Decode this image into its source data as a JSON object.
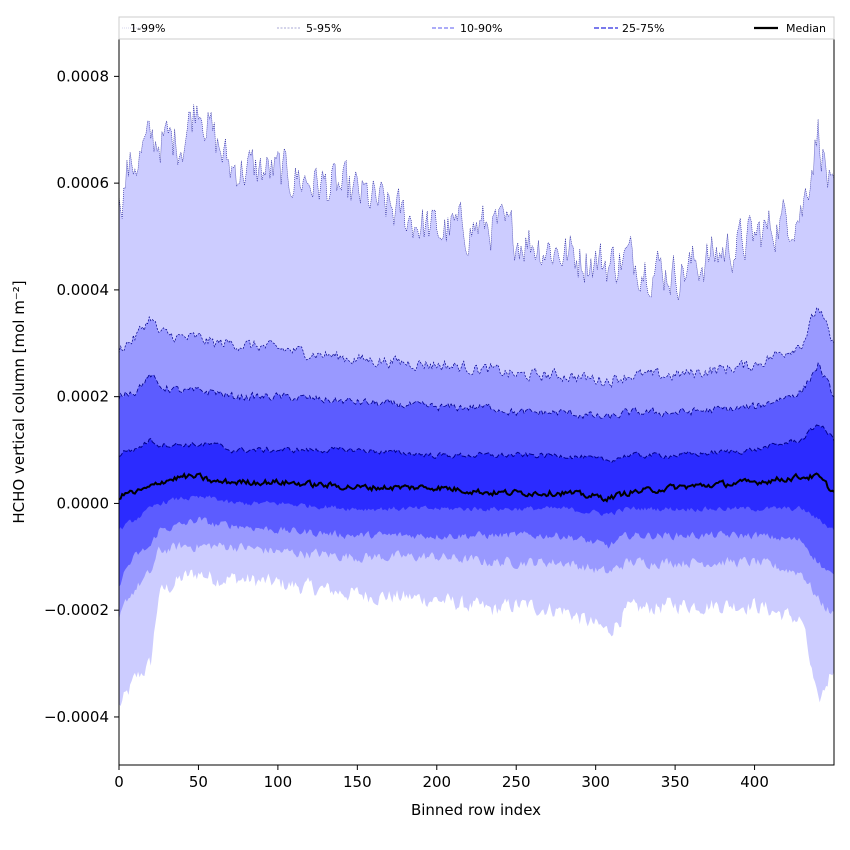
{
  "chart_data": {
    "type": "area",
    "xlabel": "Binned row index",
    "ylabel": "HCHO vertical column [mol m⁻²]",
    "xlim": [
      0,
      450
    ],
    "ylim": [
      -0.00049,
      0.00087
    ],
    "xticks": [
      0,
      50,
      100,
      150,
      200,
      250,
      300,
      350,
      400
    ],
    "xtick_labels": [
      "0",
      "50",
      "100",
      "150",
      "200",
      "250",
      "300",
      "350",
      "400"
    ],
    "yticks": [
      -0.0004,
      -0.0002,
      0.0,
      0.0002,
      0.0004,
      0.0006,
      0.0008
    ],
    "ytick_labels": [
      "−0.0004",
      "−0.0002",
      "0.0000",
      "0.0002",
      "0.0004",
      "0.0006",
      "0.0008"
    ],
    "grid": false,
    "legend_position": "top",
    "legend": [
      "1-99%",
      "5-95%",
      "10-90%",
      "25-75%",
      "Median"
    ],
    "colors": {
      "band_1_99": "#ccccff",
      "band_5_95": "#9999ff",
      "band_10_90": "#5c5cff",
      "band_25_75": "#2b2bff",
      "median": "#000000",
      "edge": "#00008b"
    },
    "x_knots": [
      0,
      5,
      10,
      20,
      25,
      40,
      50,
      60,
      70,
      100,
      150,
      200,
      235,
      250,
      280,
      308,
      320,
      350,
      400,
      430,
      440,
      450
    ],
    "series": [
      {
        "name": "1-99%",
        "lower": [
          -0.00038,
          -0.00036,
          -0.00033,
          -0.0003,
          -0.00017,
          -0.00014,
          -0.00013,
          -0.00014,
          -0.00014,
          -0.00015,
          -0.00017,
          -0.00018,
          -0.0002,
          -0.00019,
          -0.0002,
          -0.00024,
          -0.0002,
          -0.00019,
          -0.00019,
          -0.00022,
          -0.00038,
          -0.0003
        ],
        "upper": [
          0.00055,
          0.00062,
          0.00064,
          0.00068,
          0.00068,
          0.00068,
          0.00076,
          0.00068,
          0.00063,
          0.00062,
          0.00058,
          0.00051,
          0.00052,
          0.0005,
          0.00047,
          0.00045,
          0.00046,
          0.00043,
          0.0005,
          0.00055,
          0.0007,
          0.00055
        ]
      },
      {
        "name": "5-95%",
        "lower": [
          -0.00022,
          -0.00018,
          -0.00016,
          -0.00013,
          -9e-05,
          -8e-05,
          -8e-05,
          -8e-05,
          -8e-05,
          -9e-05,
          -0.0001,
          -0.0001,
          -0.00011,
          -0.00011,
          -0.00011,
          -0.00013,
          -0.00011,
          -0.00011,
          -0.00011,
          -0.00013,
          -0.00018,
          -0.00021
        ],
        "upper": [
          0.00029,
          0.0003,
          0.00031,
          0.00035,
          0.00032,
          0.00031,
          0.00031,
          0.0003,
          0.0003,
          0.00029,
          0.00027,
          0.00026,
          0.00025,
          0.00024,
          0.00024,
          0.00023,
          0.00024,
          0.00024,
          0.00026,
          0.0003,
          0.00037,
          0.00029
        ]
      },
      {
        "name": "10-90%",
        "lower": [
          -0.00015,
          -0.00012,
          -0.0001,
          -8e-05,
          -5e-05,
          -4e-05,
          -3e-05,
          -4e-05,
          -4e-05,
          -5e-05,
          -6e-05,
          -6e-05,
          -6e-05,
          -6e-05,
          -6e-05,
          -8e-05,
          -6e-05,
          -6e-05,
          -6e-05,
          -7e-05,
          -0.00011,
          -0.00014
        ],
        "upper": [
          0.0002,
          0.00021,
          0.00021,
          0.00024,
          0.00022,
          0.00021,
          0.00021,
          0.00021,
          0.0002,
          0.0002,
          0.00019,
          0.00018,
          0.00018,
          0.00017,
          0.00017,
          0.00016,
          0.00017,
          0.00017,
          0.00018,
          0.00021,
          0.00026,
          0.0002
        ]
      },
      {
        "name": "25-75%",
        "lower": [
          -5e-05,
          -4e-05,
          -3e-05,
          -1e-05,
          0.0,
          1e-05,
          1e-05,
          1e-05,
          0.0,
          0.0,
          -1e-05,
          -1e-05,
          -1e-05,
          -1e-05,
          -1e-05,
          -2e-05,
          -1e-05,
          -1e-05,
          -1e-05,
          -1e-05,
          -3e-05,
          -5e-05
        ],
        "upper": [
          9e-05,
          0.0001,
          0.0001,
          0.00012,
          0.00011,
          0.00011,
          0.00011,
          0.00011,
          0.0001,
          0.0001,
          0.0001,
          9e-05,
          9e-05,
          9e-05,
          9e-05,
          8e-05,
          9e-05,
          9e-05,
          0.0001,
          0.00012,
          0.00015,
          0.00012
        ]
      },
      {
        "name": "Median",
        "values": [
          1e-05,
          2e-05,
          2e-05,
          3e-05,
          4e-05,
          5e-05,
          5e-05,
          4e-05,
          4e-05,
          4e-05,
          3e-05,
          3e-05,
          2e-05,
          2e-05,
          2e-05,
          1e-05,
          2e-05,
          3e-05,
          4e-05,
          5e-05,
          5e-05,
          2e-05
        ]
      }
    ]
  }
}
